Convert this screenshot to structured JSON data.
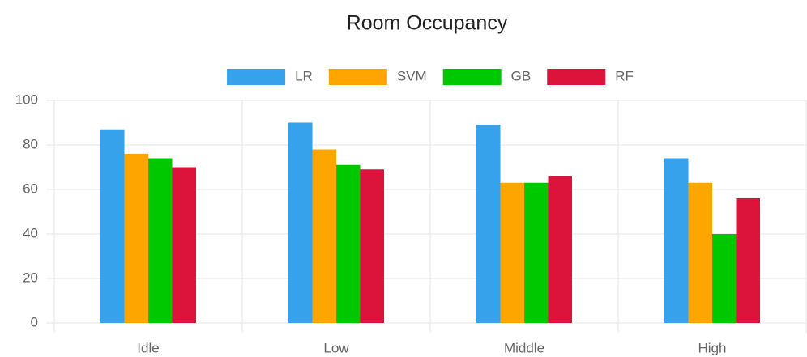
{
  "chart_data": {
    "type": "bar",
    "title": "Room Occupancy",
    "categories": [
      "Idle",
      "Low",
      "Middle",
      "High"
    ],
    "series": [
      {
        "name": "LR",
        "color": "#36a2eb",
        "values": [
          87,
          90,
          89,
          74
        ]
      },
      {
        "name": "SVM",
        "color": "#ffa500",
        "values": [
          76,
          78,
          63,
          63
        ]
      },
      {
        "name": "GB",
        "color": "#00c800",
        "values": [
          74,
          71,
          63,
          40
        ]
      },
      {
        "name": "RF",
        "color": "#dc143c",
        "values": [
          70,
          69,
          66,
          56
        ]
      }
    ],
    "ylim": [
      0,
      100
    ],
    "yticks": [
      0,
      20,
      40,
      60,
      80,
      100
    ],
    "grid": true,
    "legend": "top"
  }
}
